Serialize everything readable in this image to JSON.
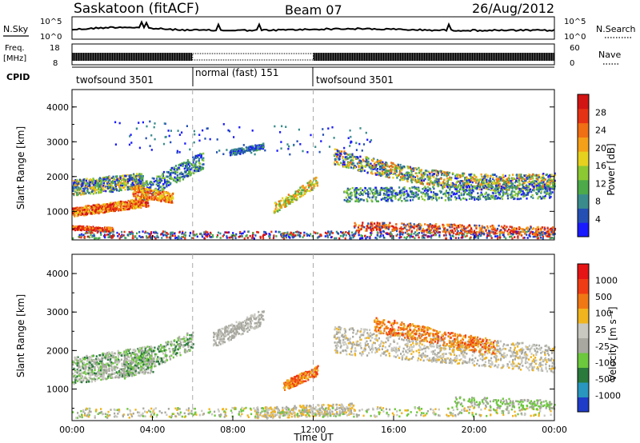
{
  "header": {
    "station": "Saskatoon (fitACF)",
    "beam": "Beam 07",
    "date": "26/Aug/2012"
  },
  "panels": {
    "nsky": {
      "left_label": "N.Sky",
      "ticks_left": [
        "10^5",
        "10^0"
      ],
      "ticks_right": [
        "10^5",
        "10^0"
      ],
      "right_label": "N.Search",
      "right_legend_style": "dotted"
    },
    "freq": {
      "left_label_1": "Freq.",
      "left_label_2": "[MHz]",
      "ticks_left": [
        "18",
        "8"
      ],
      "ticks_right": [
        "60",
        "0"
      ],
      "right_label": "Nave",
      "right_legend_style": "dotted"
    },
    "cpid": {
      "left_label": "CPID",
      "segments": [
        {
          "label": "twofsound 3501",
          "start_h": 0,
          "end_h": 6
        },
        {
          "label": "normal (fast) 151",
          "start_h": 6,
          "end_h": 12
        },
        {
          "label": "twofsound 3501",
          "start_h": 12,
          "end_h": 24
        }
      ]
    }
  },
  "chart_data": [
    {
      "type": "heatmap",
      "name": "power",
      "ylabel": "Slant Range [km]",
      "xlabel": "",
      "xlim": [
        0,
        24
      ],
      "ylim": [
        180,
        4500
      ],
      "yticks": [
        "1000",
        "2000",
        "3000",
        "4000"
      ],
      "colorbar": {
        "label": "Power [dB]",
        "ticks": [
          "4",
          "8",
          "12",
          "16",
          "20",
          "24",
          "28"
        ],
        "colors": [
          "#1a1aff",
          "#2450b4",
          "#3a8c8c",
          "#4caa4a",
          "#8cc832",
          "#e6d21e",
          "#f5a019",
          "#f06e14",
          "#e63214",
          "#d21414"
        ]
      }
    },
    {
      "type": "heatmap",
      "name": "velocity",
      "ylabel": "Slant Range [km]",
      "xlabel": "Time UT",
      "xlim": [
        0,
        24
      ],
      "ylim": [
        180,
        4500
      ],
      "yticks": [
        "1000",
        "2000",
        "3000",
        "4000"
      ],
      "xticks": [
        "00:00",
        "04:00",
        "08:00",
        "12:00",
        "16:00",
        "20:00",
        "00:00"
      ],
      "colorbar": {
        "label": "Velocity [m s⁻¹]",
        "ticks": [
          "1000",
          "500",
          "100",
          "25",
          "-25",
          "-100",
          "-500",
          "-1000"
        ],
        "colors": [
          "#1e3cc8",
          "#2896be",
          "#2a7a3c",
          "#6cc83c",
          "#a8a8a0",
          "#c8c8c0",
          "#f0b41e",
          "#f07814",
          "#f03c14",
          "#e61414"
        ]
      }
    }
  ]
}
